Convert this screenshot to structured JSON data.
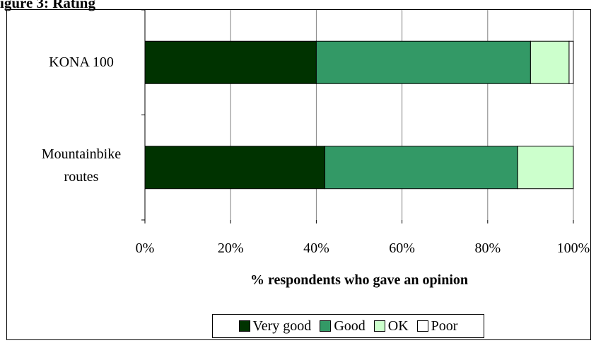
{
  "chart_data": {
    "type": "bar",
    "orientation": "horizontal",
    "stacked": true,
    "title_fragment": "igure 3: Rating",
    "categories": [
      "KONA 100",
      "Mountainbike routes"
    ],
    "category_lines": [
      [
        "KONA 100"
      ],
      [
        "Mountainbike",
        "routes"
      ]
    ],
    "series": [
      {
        "name": "Very good",
        "color": "#003300",
        "values": [
          40,
          42
        ]
      },
      {
        "name": "Good",
        "color": "#339966",
        "values": [
          50,
          45
        ]
      },
      {
        "name": "OK",
        "color": "#ccffcc",
        "values": [
          9,
          13
        ]
      },
      {
        "name": "Poor",
        "color": "#ffffff",
        "values": [
          1,
          0
        ]
      }
    ],
    "xlabel": "% respondents who gave an opinion",
    "xlim": [
      0,
      100
    ],
    "xticks": [
      "0%",
      "20%",
      "40%",
      "60%",
      "80%",
      "100%"
    ],
    "grid": "vertical",
    "legend_position": "bottom"
  }
}
